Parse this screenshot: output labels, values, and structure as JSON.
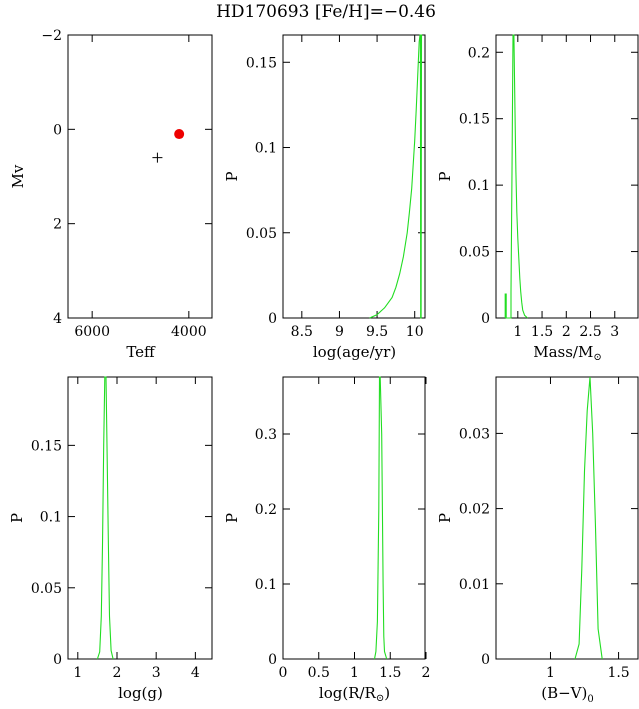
{
  "header": {
    "title": "HD170693   [Fe/H]=−0.46"
  },
  "chart_data": [
    {
      "type": "scatter",
      "panel": "hr-diagram",
      "xlabel": "Teff",
      "ylabel": "Mv",
      "xlim": [
        6500,
        3500
      ],
      "ylim": [
        4,
        -2
      ],
      "xticks": [
        6000,
        4000
      ],
      "yticks": [
        -2,
        0,
        2,
        4
      ],
      "ytick_labels": [
        "−2",
        "0",
        "2",
        "4"
      ],
      "series": [
        {
          "marker": "dot",
          "color": "#ee0000",
          "points": [
            [
              4200,
              0.1
            ]
          ]
        },
        {
          "marker": "plus",
          "color": "#000000",
          "points": [
            [
              4650,
              0.6
            ]
          ]
        }
      ]
    },
    {
      "type": "line",
      "panel": "age",
      "xlabel": "log(age/yr)",
      "ylabel": "P",
      "xlim": [
        8.25,
        10.15
      ],
      "ylim": [
        0,
        0.166
      ],
      "xticks": [
        8.5,
        9,
        9.5,
        10
      ],
      "xtick_labels": [
        "8.5",
        "9",
        "9.5",
        "10"
      ],
      "yticks": [
        0,
        0.05,
        0.1,
        0.15
      ],
      "ytick_labels": [
        "0",
        "0.05",
        "0.1",
        "0.15"
      ],
      "color": "#22dd22",
      "x": [
        9.4,
        9.5,
        9.6,
        9.7,
        9.75,
        9.8,
        9.85,
        9.9,
        9.93,
        9.96,
        9.98,
        10.0,
        10.02,
        10.04,
        10.06,
        10.07,
        10.075,
        10.08,
        10.085,
        10.09,
        10.1
      ],
      "y": [
        0,
        0.002,
        0.006,
        0.012,
        0.018,
        0.026,
        0.036,
        0.05,
        0.062,
        0.076,
        0.09,
        0.104,
        0.122,
        0.142,
        0.162,
        0.166,
        0.166,
        0,
        0,
        0.166,
        0.166
      ]
    },
    {
      "type": "line",
      "panel": "mass",
      "xlabel": "Mass/M",
      "ylabel": "P",
      "xlim": [
        0.55,
        3.5
      ],
      "ylim": [
        0,
        0.213
      ],
      "xticks": [
        1,
        1.5,
        2,
        2.5,
        3
      ],
      "xtick_labels": [
        "1",
        "1.5",
        "2",
        "2.5",
        "3"
      ],
      "yticks": [
        0,
        0.05,
        0.1,
        0.15,
        0.2
      ],
      "ytick_labels": [
        "0",
        "0.05",
        "0.1",
        "0.15",
        "0.2"
      ],
      "color": "#22dd22",
      "x": [
        0.74,
        0.74,
        0.76,
        0.76,
        0.86,
        0.86,
        0.88,
        0.9,
        0.92,
        0.94,
        0.96,
        0.98,
        1.0,
        1.02,
        1.04,
        1.06,
        1.08,
        1.1,
        1.14,
        1.2
      ],
      "y": [
        0,
        0.018,
        0.018,
        0,
        0,
        0.02,
        0.11,
        0.213,
        0.213,
        0.16,
        0.11,
        0.08,
        0.06,
        0.045,
        0.03,
        0.02,
        0.012,
        0.006,
        0.002,
        0
      ]
    },
    {
      "type": "line",
      "panel": "logg",
      "xlabel": "log(g)",
      "ylabel": "P",
      "xlim": [
        0.75,
        4.45
      ],
      "ylim": [
        0,
        0.198
      ],
      "xticks": [
        1,
        2,
        3,
        4
      ],
      "xtick_labels": [
        "1",
        "2",
        "3",
        "4"
      ],
      "yticks": [
        0,
        0.05,
        0.1,
        0.15
      ],
      "ytick_labels": [
        "0",
        "0.05",
        "0.1",
        "0.15"
      ],
      "color": "#22dd22",
      "x": [
        1.5,
        1.56,
        1.6,
        1.63,
        1.66,
        1.69,
        1.72,
        1.75,
        1.78,
        1.81,
        1.85,
        1.9
      ],
      "y": [
        0,
        0.005,
        0.03,
        0.08,
        0.15,
        0.198,
        0.198,
        0.14,
        0.08,
        0.03,
        0.006,
        0
      ]
    },
    {
      "type": "line",
      "panel": "radius",
      "xlabel": "log(R/R",
      "ylabel": "P",
      "xlim": [
        0,
        2
      ],
      "ylim": [
        0,
        0.376
      ],
      "xticks": [
        0,
        0.5,
        1,
        1.5,
        2
      ],
      "xtick_labels": [
        "0",
        "0.5",
        "1",
        "1.5",
        "2"
      ],
      "yticks": [
        0,
        0.1,
        0.2,
        0.3
      ],
      "ytick_labels": [
        "0",
        "0.1",
        "0.2",
        "0.3"
      ],
      "color": "#22dd22",
      "x": [
        1.28,
        1.3,
        1.32,
        1.34,
        1.35,
        1.36,
        1.38,
        1.39,
        1.4,
        1.41,
        1.42,
        1.45
      ],
      "y": [
        0,
        0.01,
        0.05,
        0.2,
        0.376,
        0.376,
        0.3,
        0.2,
        0.1,
        0.03,
        0.01,
        0
      ]
    },
    {
      "type": "line",
      "panel": "color-index",
      "xlabel": "(B−V)",
      "ylabel": "P",
      "xlim": [
        0.6,
        1.65
      ],
      "ylim": [
        0,
        0.0375
      ],
      "xticks": [
        1,
        1.5
      ],
      "xtick_labels": [
        "1",
        "1.5"
      ],
      "yticks": [
        0,
        0.01,
        0.02,
        0.03
      ],
      "ytick_labels": [
        "0",
        "0.01",
        "0.02",
        "0.03"
      ],
      "color": "#22dd22",
      "x": [
        1.18,
        1.21,
        1.23,
        1.25,
        1.27,
        1.29,
        1.31,
        1.33,
        1.35,
        1.38
      ],
      "y": [
        0,
        0.002,
        0.012,
        0.025,
        0.033,
        0.0375,
        0.03,
        0.018,
        0.004,
        0
      ]
    }
  ],
  "labels": {
    "sun_symbol": "⊙",
    "subscript_zero": "0",
    "close_paren": ")"
  }
}
